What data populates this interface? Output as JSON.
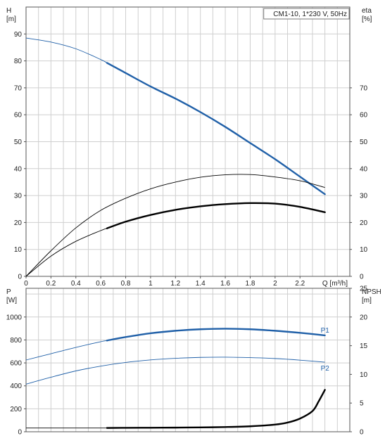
{
  "chart_data": [
    {
      "type": "line",
      "title": "CM1-10, 1*230 V, 50Hz",
      "xlabel": "Q [m³/h]",
      "ylabel": "H\n[m]",
      "y2label": "eta\n[%]",
      "xlim": [
        0,
        2.6
      ],
      "ylim": [
        0,
        100
      ],
      "y2lim": [
        0,
        100
      ],
      "grid": true,
      "x_ticks": [
        0,
        0.2,
        0.4,
        0.6,
        0.8,
        1.0,
        1.2,
        1.4,
        1.6,
        1.8,
        2.0,
        2.2
      ],
      "y_ticks": [
        0,
        10,
        20,
        30,
        40,
        50,
        60,
        70,
        80,
        90
      ],
      "y2_ticks": [
        0,
        10,
        20,
        30,
        40,
        50,
        60,
        70
      ],
      "curve_colors": {
        "head": "#2060a8",
        "efficiency": "#000000"
      },
      "series": [
        {
          "key": "head",
          "axis": "left",
          "x": [
            0,
            0.2,
            0.4,
            0.6,
            0.8,
            1.0,
            1.2,
            1.4,
            1.6,
            1.8,
            2.0,
            2.2,
            2.4
          ],
          "y": [
            88.5,
            87.0,
            84.5,
            80.5,
            75.5,
            70.5,
            66.0,
            61.0,
            55.5,
            49.5,
            43.5,
            37.0,
            30.5
          ],
          "bold_from": 0.65
        },
        {
          "key": "efficiency_a",
          "axis": "right",
          "x": [
            0,
            0.2,
            0.4,
            0.6,
            0.8,
            1.0,
            1.2,
            1.4,
            1.6,
            1.8,
            2.0,
            2.2,
            2.4
          ],
          "y": [
            0,
            9.5,
            18.0,
            24.5,
            29.0,
            32.5,
            35.0,
            36.8,
            37.7,
            37.8,
            36.9,
            35.5,
            33.0
          ],
          "bold_from": 99
        },
        {
          "key": "efficiency_b",
          "axis": "right",
          "x": [
            0,
            0.2,
            0.4,
            0.6,
            0.8,
            1.0,
            1.2,
            1.4,
            1.6,
            1.8,
            2.0,
            2.2,
            2.4
          ],
          "y": [
            0,
            7.5,
            13.0,
            17.0,
            20.3,
            22.8,
            24.7,
            26.0,
            26.8,
            27.2,
            27.0,
            25.8,
            23.8
          ],
          "bold_from": 0.65
        }
      ]
    },
    {
      "type": "line",
      "ylabel": "P\n[W]",
      "y2label": "NPSH\n[m]",
      "xlim": [
        0,
        2.6
      ],
      "ylim": [
        0,
        1250
      ],
      "y2lim": [
        0,
        25
      ],
      "grid": true,
      "y_ticks": [
        0,
        200,
        400,
        600,
        800,
        1000
      ],
      "y2_ticks": [
        0,
        5,
        10,
        15,
        20,
        25
      ],
      "curve_colors": {
        "P1": "#2060a8",
        "P2": "#2060a8",
        "npsh": "#000000"
      },
      "series": [
        {
          "key": "P1",
          "name": "P1",
          "axis": "left",
          "x": [
            0,
            0.2,
            0.4,
            0.6,
            0.8,
            1.0,
            1.2,
            1.4,
            1.6,
            1.8,
            2.0,
            2.2,
            2.4
          ],
          "y": [
            625,
            680,
            735,
            785,
            825,
            858,
            880,
            893,
            898,
            893,
            880,
            862,
            840
          ],
          "bold_from": 0.65
        },
        {
          "key": "P2",
          "name": "P2",
          "axis": "left",
          "x": [
            0,
            0.2,
            0.4,
            0.6,
            0.8,
            1.0,
            1.2,
            1.4,
            1.6,
            1.8,
            2.0,
            2.2,
            2.4
          ],
          "y": [
            415,
            475,
            530,
            572,
            604,
            626,
            640,
            648,
            650,
            646,
            638,
            624,
            606
          ],
          "bold_from": 99
        },
        {
          "key": "npsh",
          "axis": "right",
          "x": [
            0,
            0.2,
            0.4,
            0.6,
            0.8,
            1.0,
            1.2,
            1.4,
            1.6,
            1.8,
            2.0,
            2.1,
            2.2,
            2.3,
            2.35,
            2.4
          ],
          "y": [
            0.65,
            0.65,
            0.65,
            0.65,
            0.68,
            0.7,
            0.72,
            0.76,
            0.82,
            0.95,
            1.25,
            1.6,
            2.3,
            3.6,
            5.3,
            7.3
          ],
          "bold_from": 0.65
        }
      ]
    }
  ]
}
